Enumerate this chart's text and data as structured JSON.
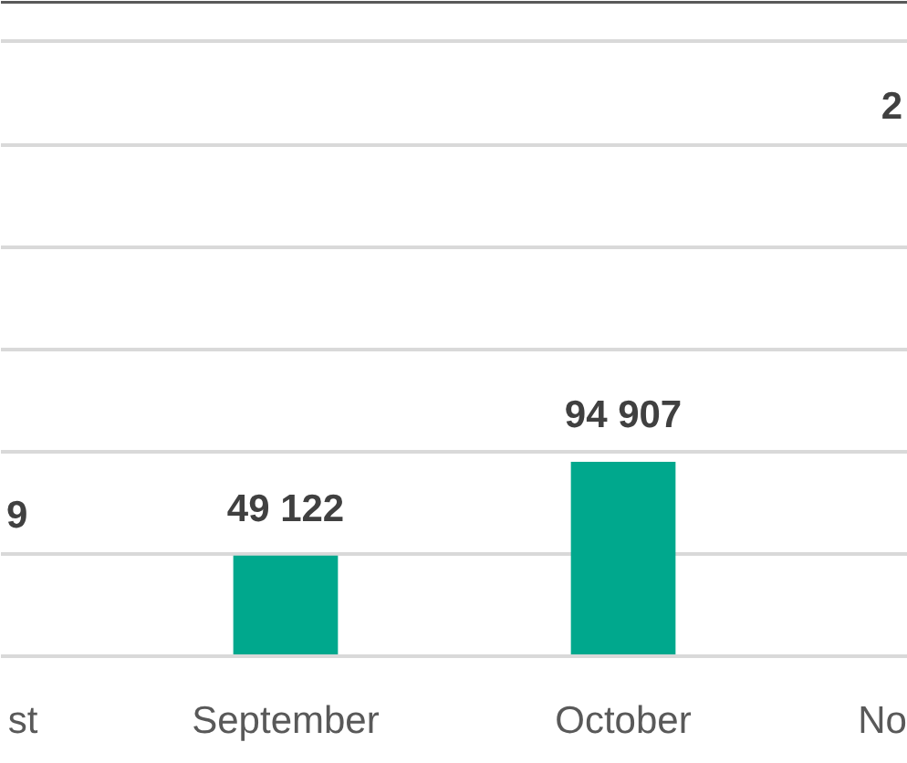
{
  "chart_data": {
    "type": "bar",
    "categories": [
      "September",
      "October"
    ],
    "values": [
      49122,
      94907
    ],
    "value_labels": [
      "49 122",
      "94 907"
    ],
    "color": "#00a88d",
    "ylim": [
      0,
      320000
    ],
    "yticks": [
      {
        "value": 50000,
        "label": null
      },
      {
        "value": 100000,
        "label": null
      },
      {
        "value": 150000,
        "label": null
      },
      {
        "value": 200000,
        "label": null
      },
      {
        "value": 250000,
        "label": null
      },
      {
        "value": 300000,
        "label": null
      }
    ],
    "grid": "y",
    "annotations": [
      "9",
      "2",
      "st",
      "No"
    ]
  }
}
